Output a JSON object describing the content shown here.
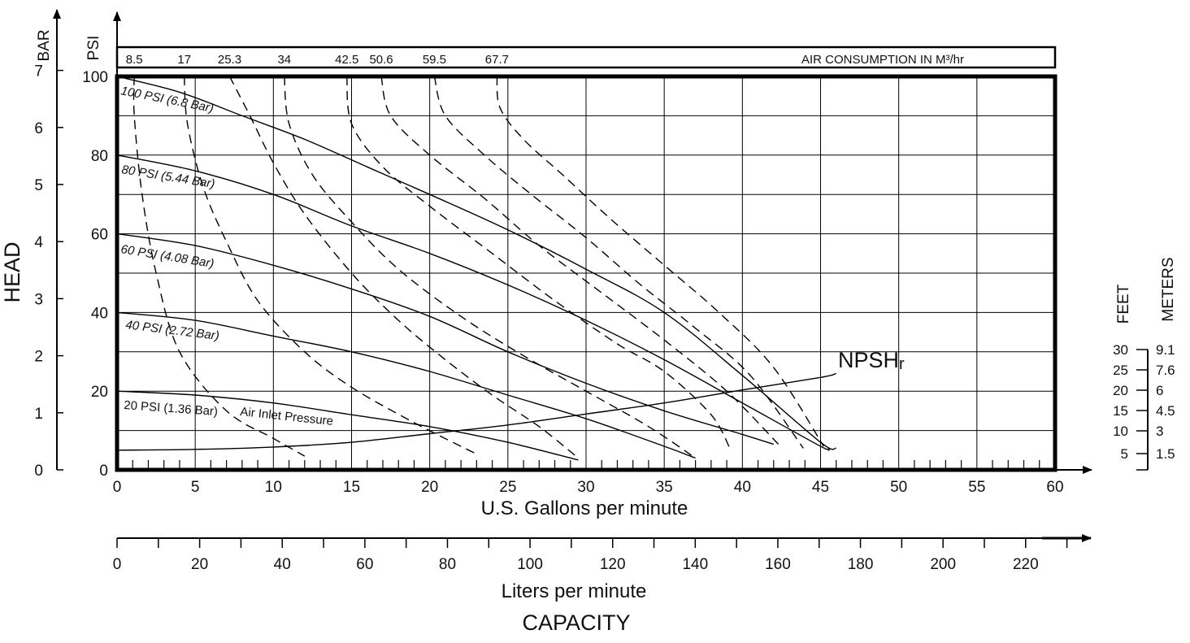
{
  "chart_data": {
    "type": "line",
    "title": "",
    "x_axis": {
      "label": "U.S. Gallons per minute",
      "range": [
        0,
        60
      ],
      "ticks": [
        0,
        5,
        10,
        15,
        20,
        25,
        30,
        35,
        40,
        45,
        50,
        55,
        60
      ]
    },
    "x2_axis": {
      "label": "Liters per minute",
      "ticks": [
        0,
        20,
        40,
        60,
        80,
        100,
        120,
        140,
        160,
        180,
        200,
        220
      ]
    },
    "capacity_label": "CAPACITY",
    "y_axis": {
      "label": "PSI",
      "range": [
        0,
        100
      ],
      "ticks": [
        0,
        20,
        40,
        60,
        80,
        100
      ]
    },
    "y_bar_axis": {
      "label": "BAR",
      "ticks": [
        0,
        1,
        2,
        3,
        4,
        5,
        6,
        7
      ]
    },
    "head_label": "HEAD",
    "npsh_axis": {
      "feet_label": "FEET",
      "meters_label": "METERS",
      "feet_ticks": [
        "30",
        "25",
        "20",
        "15",
        "10",
        "5"
      ],
      "meters_ticks": [
        "9.1",
        "7.6",
        "6",
        "4.5",
        "3",
        "1.5"
      ]
    },
    "air_consumption": {
      "label": "AIR CONSUMPTION IN M³/hr",
      "values": [
        "8.5",
        "17",
        "25.3",
        "34",
        "42.5",
        "50.6",
        "59.5",
        "67.7"
      ]
    },
    "air_pressure_label": "Air Inlet Pressure",
    "npsh_label": "NPSHr",
    "pressure_curves": [
      {
        "name": "100 PSI (6.8 Bar)",
        "points": [
          [
            0,
            100
          ],
          [
            4,
            96
          ],
          [
            8,
            90
          ],
          [
            12,
            84
          ],
          [
            16,
            77
          ],
          [
            20,
            70
          ],
          [
            25,
            61
          ],
          [
            30,
            51
          ],
          [
            35,
            40
          ],
          [
            40,
            24
          ],
          [
            45,
            7
          ],
          [
            46,
            5.5
          ]
        ]
      },
      {
        "name": "80 PSI (5.44 Bar)",
        "points": [
          [
            0,
            80
          ],
          [
            5,
            76
          ],
          [
            10,
            70
          ],
          [
            15,
            62
          ],
          [
            20,
            55
          ],
          [
            25,
            47
          ],
          [
            30,
            38
          ],
          [
            35,
            28
          ],
          [
            40,
            17
          ],
          [
            45,
            6
          ],
          [
            45.5,
            5.5
          ]
        ]
      },
      {
        "name": "60 PSI (4.08 Bar)",
        "points": [
          [
            0,
            60
          ],
          [
            5,
            57
          ],
          [
            10,
            52
          ],
          [
            15,
            46
          ],
          [
            20,
            39
          ],
          [
            25,
            30
          ],
          [
            30,
            22
          ],
          [
            35,
            15
          ],
          [
            40,
            9
          ],
          [
            42,
            6.5
          ]
        ]
      },
      {
        "name": "40 PSI (2.72 Bar)",
        "points": [
          [
            0,
            40
          ],
          [
            5,
            38
          ],
          [
            10,
            34
          ],
          [
            15,
            30
          ],
          [
            20,
            25
          ],
          [
            25,
            19
          ],
          [
            30,
            13
          ],
          [
            35,
            6
          ],
          [
            37,
            3
          ]
        ]
      },
      {
        "name": "20 PSI (1.36 Bar)",
        "points": [
          [
            0,
            20
          ],
          [
            5,
            19
          ],
          [
            10,
            17
          ],
          [
            15,
            14
          ],
          [
            20,
            11
          ],
          [
            25,
            7
          ],
          [
            29.5,
            2.5
          ]
        ]
      }
    ],
    "air_curves": [
      {
        "name": "8.5",
        "points": [
          [
            1.1,
            100
          ],
          [
            1.1,
            90
          ],
          [
            1.6,
            70
          ],
          [
            2.5,
            50
          ],
          [
            4,
            30
          ],
          [
            7,
            15
          ],
          [
            10,
            8
          ],
          [
            12,
            3.5
          ]
        ]
      },
      {
        "name": "17",
        "points": [
          [
            4.3,
            100
          ],
          [
            4.5,
            88
          ],
          [
            5.5,
            72
          ],
          [
            7,
            58
          ],
          [
            9,
            43
          ],
          [
            12,
            30
          ],
          [
            15,
            21
          ],
          [
            19,
            12
          ],
          [
            23,
            4
          ]
        ]
      },
      {
        "name": "25.3",
        "points": [
          [
            7.2,
            100
          ],
          [
            8.5,
            90
          ],
          [
            10,
            78
          ],
          [
            12,
            65
          ],
          [
            15,
            50
          ],
          [
            18,
            38
          ],
          [
            21,
            28
          ],
          [
            24,
            19
          ],
          [
            27,
            11
          ],
          [
            29.5,
            3
          ]
        ]
      },
      {
        "name": "34",
        "points": [
          [
            10.7,
            100
          ],
          [
            11,
            88
          ],
          [
            12.5,
            75
          ],
          [
            15,
            63
          ],
          [
            18,
            51
          ],
          [
            22,
            39
          ],
          [
            26,
            29
          ],
          [
            30,
            20
          ],
          [
            34,
            11
          ],
          [
            37,
            3
          ]
        ]
      },
      {
        "name": "42.5",
        "points": [
          [
            14.7,
            100
          ],
          [
            15,
            88
          ],
          [
            17,
            77
          ],
          [
            20,
            67
          ],
          [
            24,
            55
          ],
          [
            28,
            43
          ],
          [
            32,
            32
          ],
          [
            35,
            25
          ],
          [
            38,
            14
          ],
          [
            39.2,
            5.5
          ]
        ]
      },
      {
        "name": "50.6",
        "points": [
          [
            16.9,
            100
          ],
          [
            17.5,
            90
          ],
          [
            20,
            80
          ],
          [
            23.5,
            69
          ],
          [
            27,
            57
          ],
          [
            31,
            45
          ],
          [
            35,
            33
          ],
          [
            39,
            20
          ],
          [
            42.3,
            6.5
          ]
        ]
      },
      {
        "name": "59.5",
        "points": [
          [
            20.3,
            100
          ],
          [
            21,
            90
          ],
          [
            23.5,
            80
          ],
          [
            26.5,
            70
          ],
          [
            30,
            59
          ],
          [
            33.5,
            47
          ],
          [
            37,
            36
          ],
          [
            40.5,
            24
          ],
          [
            43.9,
            5.5
          ]
        ]
      },
      {
        "name": "67.7",
        "points": [
          [
            24.3,
            100
          ],
          [
            24.5,
            92
          ],
          [
            26,
            84
          ],
          [
            28.5,
            75
          ],
          [
            31.5,
            64
          ],
          [
            35,
            52
          ],
          [
            38.5,
            40
          ],
          [
            42,
            26
          ],
          [
            45.2,
            6
          ]
        ]
      }
    ],
    "npsh_curve": {
      "points": [
        [
          0,
          5
        ],
        [
          5,
          5.2
        ],
        [
          10,
          5.8
        ],
        [
          15,
          7
        ],
        [
          20,
          9.2
        ],
        [
          25,
          11.4
        ],
        [
          30,
          14.2
        ],
        [
          35,
          17
        ],
        [
          40,
          20.3
        ],
        [
          45,
          23.5
        ],
        [
          46,
          24.5
        ]
      ]
    }
  }
}
